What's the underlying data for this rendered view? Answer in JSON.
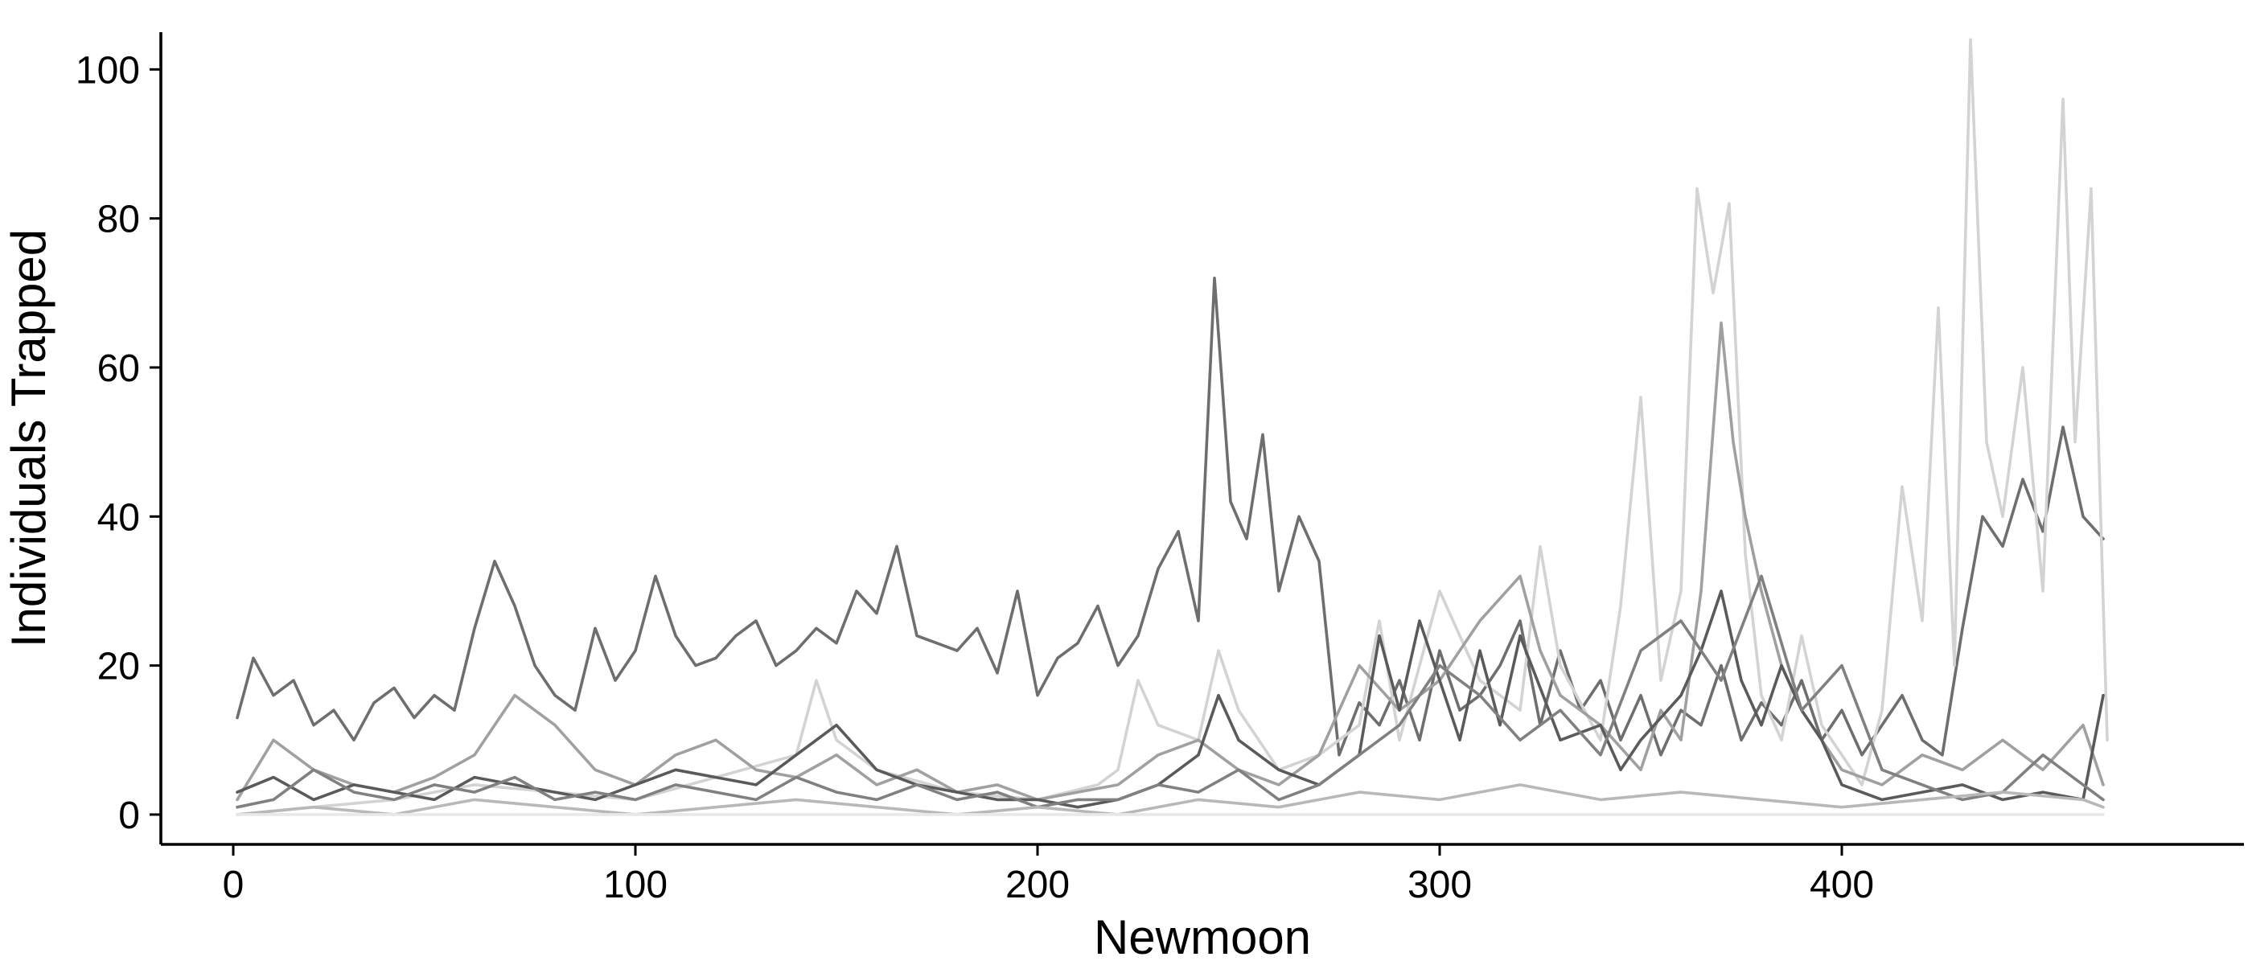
{
  "chart_data": {
    "type": "line",
    "xlabel": "Newmoon",
    "ylabel": "Individuals Trapped",
    "xlim": [
      -18,
      500
    ],
    "ylim": [
      -4,
      105
    ],
    "x_ticks": [
      0,
      100,
      200,
      300,
      400
    ],
    "y_ticks": [
      0,
      20,
      40,
      60,
      80,
      100
    ],
    "grid": false,
    "legend": "none",
    "series": [
      {
        "color": "#6e6e6e",
        "x": [
          1,
          5,
          10,
          15,
          20,
          25,
          30,
          35,
          40,
          45,
          50,
          55,
          60,
          65,
          70,
          75,
          80,
          85,
          90,
          95,
          100,
          105,
          110,
          115,
          120,
          125,
          130,
          135,
          140,
          145,
          150,
          155,
          160,
          165,
          170,
          175,
          180,
          185,
          190,
          195,
          200,
          205,
          210,
          215,
          220,
          225,
          230,
          235,
          240,
          244,
          248,
          252,
          256,
          260,
          265,
          270,
          275,
          280,
          285,
          290,
          295,
          300,
          305,
          310,
          315,
          320,
          325,
          330,
          335,
          340,
          345,
          350,
          355,
          360,
          365,
          370,
          375,
          380,
          385,
          390,
          395,
          400,
          405,
          410,
          415,
          420,
          425,
          430,
          435,
          440,
          445,
          450,
          455,
          460,
          465
        ],
        "y": [
          13,
          21,
          16,
          18,
          12,
          14,
          10,
          15,
          17,
          13,
          16,
          14,
          25,
          34,
          28,
          20,
          16,
          14,
          25,
          18,
          22,
          32,
          24,
          20,
          21,
          24,
          26,
          20,
          22,
          25,
          23,
          30,
          27,
          36,
          24,
          23,
          22,
          25,
          19,
          30,
          16,
          21,
          23,
          28,
          20,
          24,
          33,
          38,
          26,
          72,
          42,
          37,
          51,
          30,
          40,
          34,
          8,
          15,
          12,
          18,
          10,
          22,
          14,
          16,
          20,
          26,
          12,
          22,
          14,
          18,
          10,
          16,
          8,
          14,
          12,
          20,
          10,
          15,
          12,
          18,
          10,
          14,
          8,
          12,
          16,
          10,
          8,
          25,
          40,
          36,
          45,
          38,
          52,
          40,
          37
        ]
      },
      {
        "color": "#d3d3d3",
        "x": [
          1,
          20,
          40,
          60,
          80,
          100,
          120,
          140,
          145,
          150,
          160,
          180,
          200,
          215,
          220,
          225,
          230,
          240,
          245,
          250,
          260,
          270,
          280,
          285,
          290,
          300,
          310,
          320,
          325,
          330,
          340,
          345,
          350,
          355,
          360,
          364,
          368,
          372,
          376,
          380,
          385,
          390,
          395,
          400,
          405,
          410,
          415,
          420,
          424,
          428,
          432,
          436,
          440,
          445,
          450,
          455,
          458,
          462,
          466
        ],
        "y": [
          0,
          1,
          2,
          4,
          3,
          2,
          5,
          8,
          18,
          10,
          6,
          3,
          2,
          4,
          6,
          18,
          12,
          10,
          22,
          14,
          6,
          8,
          12,
          26,
          10,
          30,
          18,
          14,
          36,
          20,
          10,
          28,
          56,
          18,
          30,
          84,
          70,
          82,
          35,
          16,
          10,
          24,
          12,
          8,
          4,
          14,
          44,
          26,
          68,
          20,
          104,
          50,
          40,
          60,
          30,
          96,
          50,
          84,
          10
        ]
      },
      {
        "color": "#a0a0a0",
        "x": [
          1,
          10,
          20,
          30,
          40,
          50,
          60,
          70,
          80,
          90,
          100,
          110,
          120,
          130,
          140,
          150,
          160,
          170,
          180,
          190,
          200,
          210,
          220,
          230,
          240,
          250,
          260,
          270,
          280,
          290,
          300,
          310,
          320,
          325,
          330,
          340,
          350,
          355,
          360,
          365,
          370,
          373,
          376,
          380,
          385,
          390,
          395,
          400,
          410,
          420,
          430,
          440,
          450,
          460,
          465
        ],
        "y": [
          2,
          10,
          6,
          4,
          3,
          5,
          8,
          16,
          12,
          6,
          4,
          8,
          10,
          6,
          5,
          8,
          4,
          6,
          3,
          4,
          2,
          3,
          4,
          8,
          10,
          6,
          4,
          8,
          20,
          14,
          18,
          26,
          32,
          22,
          16,
          12,
          6,
          14,
          10,
          30,
          66,
          50,
          40,
          30,
          20,
          14,
          10,
          6,
          4,
          8,
          6,
          10,
          6,
          12,
          4
        ]
      },
      {
        "color": "#5a5a5a",
        "x": [
          1,
          10,
          20,
          30,
          40,
          50,
          60,
          70,
          80,
          90,
          100,
          110,
          120,
          130,
          140,
          150,
          160,
          170,
          180,
          190,
          200,
          210,
          220,
          230,
          240,
          245,
          250,
          260,
          270,
          280,
          285,
          290,
          295,
          300,
          305,
          310,
          315,
          320,
          330,
          340,
          345,
          350,
          360,
          365,
          370,
          375,
          380,
          385,
          390,
          395,
          400,
          410,
          420,
          430,
          440,
          450,
          460,
          465
        ],
        "y": [
          3,
          5,
          2,
          4,
          3,
          2,
          5,
          4,
          3,
          2,
          4,
          6,
          5,
          4,
          8,
          12,
          6,
          4,
          3,
          2,
          2,
          1,
          2,
          4,
          8,
          16,
          10,
          6,
          4,
          8,
          24,
          14,
          26,
          18,
          10,
          22,
          12,
          24,
          10,
          12,
          6,
          10,
          16,
          22,
          30,
          18,
          12,
          20,
          14,
          10,
          4,
          2,
          3,
          4,
          2,
          3,
          2,
          16
        ]
      },
      {
        "color": "#808080",
        "x": [
          1,
          10,
          20,
          30,
          40,
          50,
          60,
          70,
          80,
          90,
          100,
          110,
          120,
          130,
          140,
          150,
          160,
          170,
          180,
          190,
          200,
          210,
          220,
          230,
          240,
          250,
          260,
          270,
          280,
          290,
          300,
          310,
          320,
          330,
          340,
          350,
          360,
          370,
          380,
          390,
          400,
          410,
          420,
          430,
          440,
          450,
          460,
          465
        ],
        "y": [
          1,
          2,
          6,
          3,
          2,
          4,
          3,
          5,
          2,
          3,
          2,
          4,
          3,
          2,
          5,
          3,
          2,
          4,
          2,
          3,
          1,
          2,
          2,
          4,
          3,
          6,
          2,
          4,
          8,
          12,
          20,
          16,
          10,
          14,
          8,
          22,
          26,
          18,
          32,
          14,
          20,
          6,
          4,
          2,
          3,
          8,
          4,
          2
        ]
      },
      {
        "color": "#b8b8b8",
        "x": [
          1,
          20,
          40,
          60,
          80,
          100,
          120,
          140,
          160,
          180,
          200,
          220,
          240,
          260,
          280,
          300,
          320,
          340,
          360,
          380,
          400,
          420,
          440,
          460,
          465
        ],
        "y": [
          0,
          1,
          0,
          2,
          1,
          0,
          1,
          2,
          1,
          0,
          1,
          0,
          2,
          1,
          3,
          2,
          4,
          2,
          3,
          2,
          1,
          2,
          3,
          2,
          1
        ]
      },
      {
        "color": "#e8e8e8",
        "x": [
          1,
          50,
          100,
          150,
          200,
          250,
          300,
          350,
          400,
          450,
          465
        ],
        "y": [
          0,
          0,
          0,
          0,
          0,
          0,
          0,
          0,
          0,
          0,
          0
        ]
      }
    ]
  }
}
